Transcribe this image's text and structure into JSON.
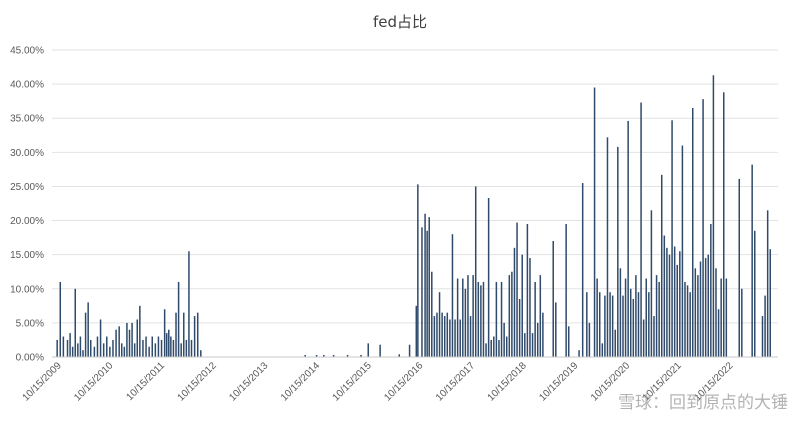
{
  "chart_data": {
    "type": "bar",
    "title": "fed占比",
    "xlabel": "",
    "ylabel": "",
    "ylim": [
      0,
      45
    ],
    "y_ticks": [
      "0.00%",
      "5.00%",
      "10.00%",
      "15.00%",
      "20.00%",
      "25.00%",
      "30.00%",
      "35.00%",
      "40.00%",
      "45.00%"
    ],
    "x_tick_labels": [
      "10/15/2009",
      "10/15/2010",
      "10/15/2011",
      "10/15/2012",
      "10/15/2013",
      "10/15/2014",
      "10/15/2015",
      "10/15/2016",
      "10/15/2017",
      "10/15/2018",
      "10/15/2019",
      "10/15/2020",
      "10/15/2021",
      "10/15/2022"
    ],
    "grid": true,
    "legend": "none",
    "bar_color": "#2f4a6b",
    "series": [
      {
        "values": [
          [
            2009.8,
            2.5
          ],
          [
            2009.86,
            11.0
          ],
          [
            2009.92,
            3.0
          ],
          [
            2010.0,
            2.5
          ],
          [
            2010.05,
            3.5
          ],
          [
            2010.1,
            1.5
          ],
          [
            2010.15,
            10.0
          ],
          [
            2010.2,
            2.0
          ],
          [
            2010.25,
            3.0
          ],
          [
            2010.3,
            1.0
          ],
          [
            2010.35,
            6.5
          ],
          [
            2010.4,
            8.0
          ],
          [
            2010.45,
            2.5
          ],
          [
            2010.52,
            1.5
          ],
          [
            2010.58,
            3.0
          ],
          [
            2010.64,
            5.5
          ],
          [
            2010.7,
            2.0
          ],
          [
            2010.76,
            3.0
          ],
          [
            2010.82,
            1.5
          ],
          [
            2010.88,
            2.5
          ],
          [
            2010.94,
            4.0
          ],
          [
            2011.0,
            4.5
          ],
          [
            2011.05,
            2.0
          ],
          [
            2011.1,
            1.5
          ],
          [
            2011.15,
            5.0
          ],
          [
            2011.2,
            4.0
          ],
          [
            2011.25,
            5.0
          ],
          [
            2011.3,
            2.0
          ],
          [
            2011.35,
            5.5
          ],
          [
            2011.4,
            7.5
          ],
          [
            2011.46,
            2.5
          ],
          [
            2011.52,
            3.0
          ],
          [
            2011.58,
            1.5
          ],
          [
            2011.64,
            3.0
          ],
          [
            2011.7,
            2.0
          ],
          [
            2011.76,
            3.0
          ],
          [
            2011.82,
            2.5
          ],
          [
            2011.88,
            7.0
          ],
          [
            2011.92,
            3.5
          ],
          [
            2011.96,
            4.0
          ],
          [
            2012.0,
            3.0
          ],
          [
            2012.05,
            2.5
          ],
          [
            2012.1,
            6.5
          ],
          [
            2012.15,
            11.0
          ],
          [
            2012.2,
            2.0
          ],
          [
            2012.25,
            6.5
          ],
          [
            2012.3,
            2.5
          ],
          [
            2012.35,
            15.5
          ],
          [
            2012.4,
            2.5
          ],
          [
            2012.46,
            6.0
          ],
          [
            2012.52,
            6.5
          ],
          [
            2012.58,
            1.0
          ],
          [
            2014.6,
            0.3
          ],
          [
            2014.82,
            0.3
          ],
          [
            2014.96,
            0.3
          ],
          [
            2015.15,
            0.3
          ],
          [
            2015.42,
            0.3
          ],
          [
            2015.68,
            0.3
          ],
          [
            2015.82,
            2.0
          ],
          [
            2016.05,
            1.8
          ],
          [
            2016.42,
            0.4
          ],
          [
            2016.62,
            1.8
          ],
          [
            2016.75,
            7.5
          ],
          [
            2016.78,
            25.3
          ],
          [
            2016.86,
            19.0
          ],
          [
            2016.92,
            21.0
          ],
          [
            2016.96,
            18.5
          ],
          [
            2017.0,
            20.5
          ],
          [
            2017.05,
            12.5
          ],
          [
            2017.1,
            6.0
          ],
          [
            2017.15,
            6.5
          ],
          [
            2017.2,
            9.5
          ],
          [
            2017.25,
            6.5
          ],
          [
            2017.3,
            6.0
          ],
          [
            2017.35,
            6.5
          ],
          [
            2017.4,
            5.5
          ],
          [
            2017.45,
            18.0
          ],
          [
            2017.5,
            5.5
          ],
          [
            2017.55,
            11.5
          ],
          [
            2017.6,
            5.5
          ],
          [
            2017.65,
            11.5
          ],
          [
            2017.7,
            10.0
          ],
          [
            2017.75,
            12.0
          ],
          [
            2017.8,
            6.0
          ],
          [
            2017.85,
            12.0
          ],
          [
            2017.9,
            25.0
          ],
          [
            2017.95,
            11.0
          ],
          [
            2018.0,
            10.5
          ],
          [
            2018.05,
            11.0
          ],
          [
            2018.1,
            2.0
          ],
          [
            2018.15,
            23.3
          ],
          [
            2018.2,
            2.5
          ],
          [
            2018.25,
            3.0
          ],
          [
            2018.3,
            11.0
          ],
          [
            2018.35,
            2.5
          ],
          [
            2018.4,
            11.0
          ],
          [
            2018.45,
            5.0
          ],
          [
            2018.5,
            3.0
          ],
          [
            2018.55,
            12.0
          ],
          [
            2018.6,
            12.5
          ],
          [
            2018.65,
            16.0
          ],
          [
            2018.7,
            19.7
          ],
          [
            2018.75,
            8.5
          ],
          [
            2018.8,
            15.0
          ],
          [
            2018.85,
            3.5
          ],
          [
            2018.9,
            19.5
          ],
          [
            2018.95,
            14.5
          ],
          [
            2019.0,
            3.5
          ],
          [
            2019.05,
            11.0
          ],
          [
            2019.1,
            5.0
          ],
          [
            2019.15,
            12.0
          ],
          [
            2019.2,
            6.5
          ],
          [
            2019.4,
            17.0
          ],
          [
            2019.45,
            8.0
          ],
          [
            2019.65,
            19.5
          ],
          [
            2019.7,
            4.5
          ],
          [
            2019.9,
            1.0
          ],
          [
            2019.97,
            25.5
          ],
          [
            2020.05,
            9.5
          ],
          [
            2020.1,
            5.0
          ],
          [
            2020.2,
            39.5
          ],
          [
            2020.25,
            11.5
          ],
          [
            2020.3,
            9.5
          ],
          [
            2020.35,
            2.0
          ],
          [
            2020.4,
            9.0
          ],
          [
            2020.45,
            32.2
          ],
          [
            2020.5,
            9.5
          ],
          [
            2020.55,
            9.0
          ],
          [
            2020.6,
            4.0
          ],
          [
            2020.65,
            30.8
          ],
          [
            2020.7,
            13.0
          ],
          [
            2020.75,
            9.0
          ],
          [
            2020.8,
            11.5
          ],
          [
            2020.85,
            34.6
          ],
          [
            2020.9,
            10.0
          ],
          [
            2020.95,
            8.5
          ],
          [
            2021.0,
            12.0
          ],
          [
            2021.05,
            9.5
          ],
          [
            2021.1,
            37.3
          ],
          [
            2021.15,
            5.5
          ],
          [
            2021.2,
            11.5
          ],
          [
            2021.25,
            9.5
          ],
          [
            2021.3,
            21.5
          ],
          [
            2021.35,
            6.0
          ],
          [
            2021.4,
            12.0
          ],
          [
            2021.45,
            11.0
          ],
          [
            2021.5,
            26.7
          ],
          [
            2021.55,
            17.8
          ],
          [
            2021.6,
            16.0
          ],
          [
            2021.65,
            15.0
          ],
          [
            2021.7,
            34.7
          ],
          [
            2021.75,
            16.2
          ],
          [
            2021.8,
            13.5
          ],
          [
            2021.85,
            15.5
          ],
          [
            2021.9,
            31.0
          ],
          [
            2021.95,
            11.0
          ],
          [
            2022.0,
            10.5
          ],
          [
            2022.05,
            9.5
          ],
          [
            2022.1,
            36.5
          ],
          [
            2022.15,
            13.0
          ],
          [
            2022.2,
            12.0
          ],
          [
            2022.25,
            14.0
          ],
          [
            2022.3,
            37.8
          ],
          [
            2022.35,
            14.5
          ],
          [
            2022.4,
            15.0
          ],
          [
            2022.45,
            19.5
          ],
          [
            2022.5,
            41.3
          ],
          [
            2022.55,
            13.0
          ],
          [
            2022.6,
            7.0
          ],
          [
            2022.65,
            11.5
          ],
          [
            2022.7,
            38.8
          ],
          [
            2022.75,
            11.5
          ],
          [
            2023.0,
            26.1
          ],
          [
            2023.05,
            10.0
          ],
          [
            2023.25,
            28.2
          ],
          [
            2023.3,
            18.5
          ],
          [
            2023.45,
            6.0
          ],
          [
            2023.5,
            9.0
          ],
          [
            2023.55,
            21.5
          ],
          [
            2023.6,
            15.8
          ]
        ]
      }
    ]
  },
  "watermark": "雪球：回到原点的大锤"
}
